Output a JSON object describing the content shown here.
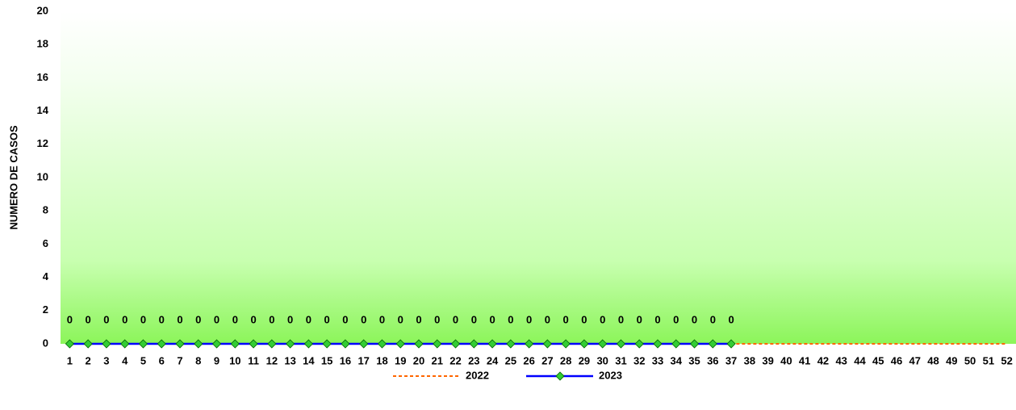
{
  "chart_data": {
    "type": "line",
    "ylabel": "NUMERO DE CASOS",
    "categories": [
      "1",
      "2",
      "3",
      "4",
      "5",
      "6",
      "7",
      "8",
      "9",
      "10",
      "11",
      "12",
      "13",
      "14",
      "15",
      "16",
      "17",
      "18",
      "19",
      "20",
      "21",
      "22",
      "23",
      "24",
      "25",
      "26",
      "27",
      "28",
      "29",
      "30",
      "31",
      "32",
      "33",
      "34",
      "35",
      "36",
      "37",
      "38",
      "39",
      "40",
      "41",
      "42",
      "43",
      "44",
      "45",
      "46",
      "47",
      "48",
      "49",
      "50",
      "51",
      "52"
    ],
    "series": [
      {
        "name": "2022",
        "color": "#ff6600",
        "dashed": true,
        "values": [
          0,
          0,
          0,
          0,
          0,
          0,
          0,
          0,
          0,
          0,
          0,
          0,
          0,
          0,
          0,
          0,
          0,
          0,
          0,
          0,
          0,
          0,
          0,
          0,
          0,
          0,
          0,
          0,
          0,
          0,
          0,
          0,
          0,
          0,
          0,
          0,
          0,
          0,
          0,
          0,
          0,
          0,
          0,
          0,
          0,
          0,
          0,
          0,
          0,
          0,
          0,
          0
        ]
      },
      {
        "name": "2023",
        "color": "#0000ff",
        "marker_color": "#33cc33",
        "data_labels": true,
        "values": [
          0,
          0,
          0,
          0,
          0,
          0,
          0,
          0,
          0,
          0,
          0,
          0,
          0,
          0,
          0,
          0,
          0,
          0,
          0,
          0,
          0,
          0,
          0,
          0,
          0,
          0,
          0,
          0,
          0,
          0,
          0,
          0,
          0,
          0,
          0,
          0,
          0,
          null,
          null,
          null,
          null,
          null,
          null,
          null,
          null,
          null,
          null,
          null,
          null,
          null,
          null,
          null
        ]
      }
    ],
    "ylim": [
      0,
      20
    ],
    "yticks": [
      0,
      2,
      4,
      6,
      8,
      10,
      12,
      14,
      16,
      18,
      20
    ],
    "grid": false,
    "legend": "bottom"
  }
}
